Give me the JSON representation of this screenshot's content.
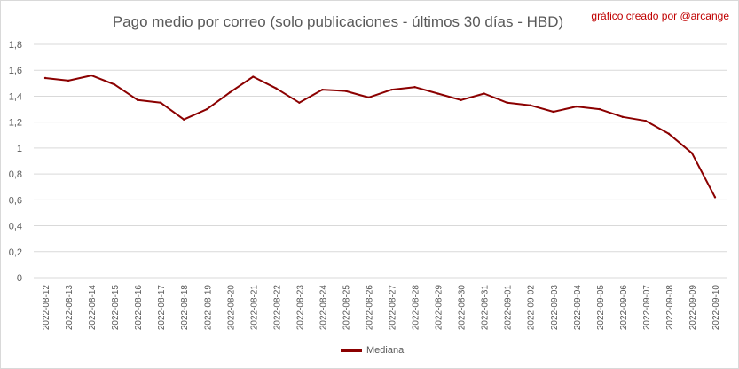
{
  "colors": {
    "series": "#8b0000",
    "grid": "#d9d9d9",
    "axis_text": "#595959",
    "credit": "#c00000"
  },
  "chart_data": {
    "type": "line",
    "title": "Pago medio por correo (solo publicaciones - últimos 30 días - HBD)",
    "credit": "gráfico creado por @arcange",
    "xlabel": "",
    "ylabel": "",
    "ylim": [
      0,
      1.8
    ],
    "yticks": [
      "0",
      "0,2",
      "0,4",
      "0,6",
      "0,8",
      "1",
      "1,2",
      "1,4",
      "1,6",
      "1,8"
    ],
    "grid": true,
    "legend_position": "bottom",
    "categories": [
      "2022-08-12",
      "2022-08-13",
      "2022-08-14",
      "2022-08-15",
      "2022-08-16",
      "2022-08-17",
      "2022-08-18",
      "2022-08-19",
      "2022-08-20",
      "2022-08-21",
      "2022-08-22",
      "2022-08-23",
      "2022-08-24",
      "2022-08-25",
      "2022-08-26",
      "2022-08-27",
      "2022-08-28",
      "2022-08-29",
      "2022-08-30",
      "2022-08-31",
      "2022-09-01",
      "2022-09-02",
      "2022-09-03",
      "2022-09-04",
      "2022-09-05",
      "2022-09-06",
      "2022-09-07",
      "2022-09-08",
      "2022-09-09",
      "2022-09-10"
    ],
    "series": [
      {
        "name": "Mediana",
        "values": [
          1.54,
          1.52,
          1.56,
          1.49,
          1.37,
          1.35,
          1.22,
          1.3,
          1.43,
          1.55,
          1.46,
          1.35,
          1.45,
          1.44,
          1.39,
          1.45,
          1.47,
          1.42,
          1.37,
          1.42,
          1.35,
          1.33,
          1.28,
          1.32,
          1.3,
          1.24,
          1.21,
          1.11,
          0.96,
          0.62
        ]
      }
    ]
  }
}
